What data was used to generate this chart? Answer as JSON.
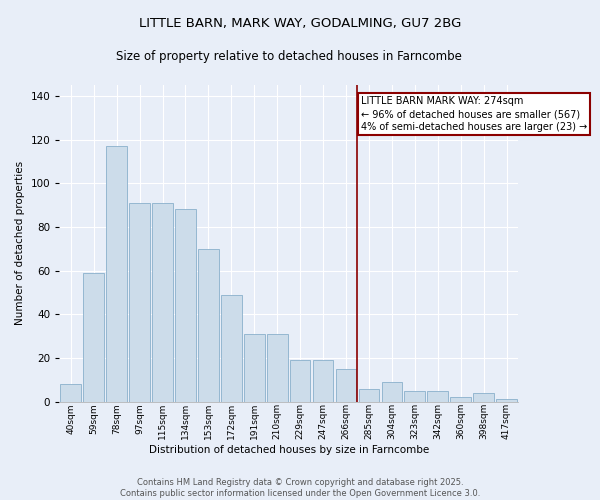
{
  "title_line1": "LITTLE BARN, MARK WAY, GODALMING, GU7 2BG",
  "title_line2": "Size of property relative to detached houses in Farncombe",
  "xlabel": "Distribution of detached houses by size in Farncombe",
  "ylabel": "Number of detached properties",
  "bar_labels": [
    "40sqm",
    "59sqm",
    "78sqm",
    "97sqm",
    "115sqm",
    "134sqm",
    "153sqm",
    "172sqm",
    "191sqm",
    "210sqm",
    "229sqm",
    "247sqm",
    "266sqm",
    "285sqm",
    "304sqm",
    "323sqm",
    "342sqm",
    "360sqm",
    "398sqm",
    "417sqm"
  ],
  "bar_values": [
    8,
    59,
    117,
    91,
    91,
    88,
    70,
    49,
    31,
    31,
    19,
    19,
    15,
    6,
    9,
    5,
    5,
    2,
    4,
    1
  ],
  "bar_color": "#ccdcea",
  "bar_edgecolor": "#8ab0cc",
  "background_color": "#e8eef8",
  "fig_background_color": "#e8eef8",
  "vline_x": 12.5,
  "vline_color": "#8b0000",
  "annotation_text": "LITTLE BARN MARK WAY: 274sqm\n← 96% of detached houses are smaller (567)\n4% of semi-detached houses are larger (23) →",
  "annotation_box_edgecolor": "#8b0000",
  "annotation_fontsize": 7,
  "ylim": [
    0,
    145
  ],
  "yticks": [
    0,
    20,
    40,
    60,
    80,
    100,
    120,
    140
  ],
  "footer_line1": "Contains HM Land Registry data © Crown copyright and database right 2025.",
  "footer_line2": "Contains public sector information licensed under the Open Government Licence 3.0.",
  "footer_fontsize": 6
}
